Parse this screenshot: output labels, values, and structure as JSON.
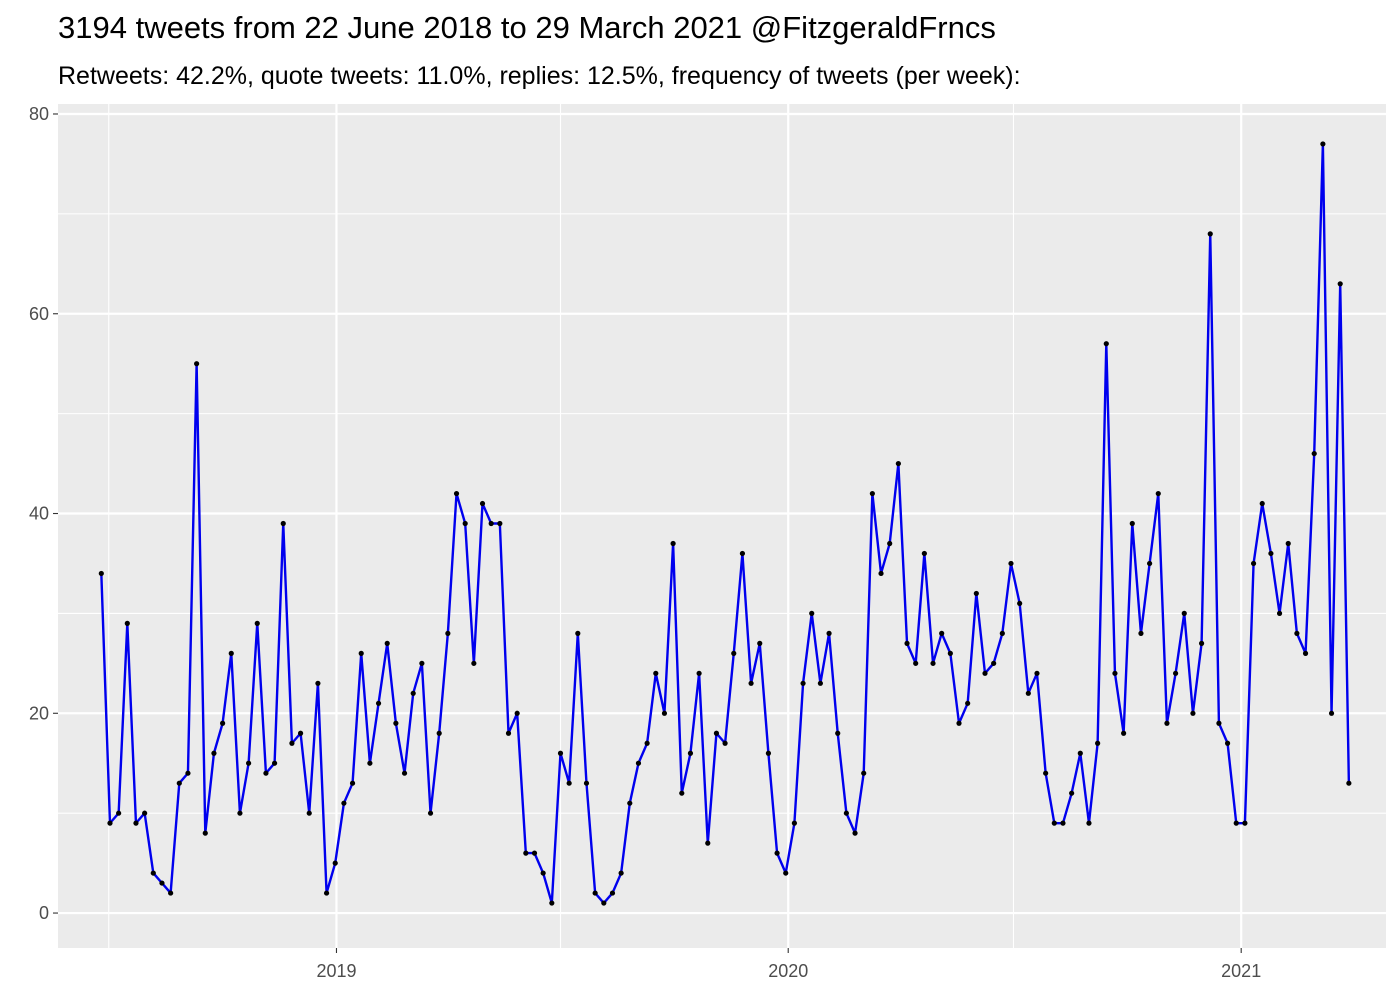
{
  "chart_data": {
    "type": "line",
    "title": "3194 tweets from 22 June 2018 to 29 March 2021 @FitzgeraldFrncs",
    "subtitle": "Retweets: 42.2%, quote tweets: 11.0%, replies: 12.5%, frequency of tweets (per week):",
    "xlabel": "",
    "ylabel": "",
    "ylim": [
      -3.5,
      81
    ],
    "xlim": [
      "2018-05-21",
      "2021-04-28"
    ],
    "y_ticks": [
      0,
      20,
      40,
      60,
      80
    ],
    "x_ticks": [
      {
        "date": "2019-01-01",
        "label": "2019"
      },
      {
        "date": "2020-01-01",
        "label": "2020"
      },
      {
        "date": "2021-01-01",
        "label": "2021"
      }
    ],
    "x_minor_ticks": [
      "2018-07-01",
      "2019-07-01",
      "2020-07-01"
    ],
    "grid": true,
    "line_color": "#0000ee",
    "point_color": "#000000",
    "panel_color": "#ebebeb",
    "grid_color": "#ffffff",
    "series": [
      {
        "x": [
          "2018-06-25",
          "2018-07-02",
          "2018-07-09",
          "2018-07-16",
          "2018-07-23",
          "2018-07-30",
          "2018-08-06",
          "2018-08-13",
          "2018-08-20",
          "2018-08-27",
          "2018-09-03",
          "2018-09-10",
          "2018-09-17",
          "2018-09-24",
          "2018-10-01",
          "2018-10-08",
          "2018-10-15",
          "2018-10-22",
          "2018-10-29",
          "2018-11-05",
          "2018-11-12",
          "2018-11-19",
          "2018-11-26",
          "2018-12-03",
          "2018-12-10",
          "2018-12-17",
          "2018-12-24",
          "2018-12-31",
          "2019-01-07",
          "2019-01-14",
          "2019-01-21",
          "2019-01-28",
          "2019-02-04",
          "2019-02-11",
          "2019-02-18",
          "2019-02-25",
          "2019-03-04",
          "2019-03-11",
          "2019-03-18",
          "2019-03-25",
          "2019-04-01",
          "2019-04-08",
          "2019-04-15",
          "2019-04-22",
          "2019-04-29",
          "2019-05-06",
          "2019-05-13",
          "2019-05-20",
          "2019-05-27",
          "2019-06-03",
          "2019-06-10",
          "2019-06-17",
          "2019-06-24",
          "2019-07-01",
          "2019-07-08",
          "2019-07-15",
          "2019-07-22",
          "2019-07-29",
          "2019-08-05",
          "2019-08-12",
          "2019-08-19",
          "2019-08-26",
          "2019-09-02",
          "2019-09-09",
          "2019-09-16",
          "2019-09-23",
          "2019-09-30",
          "2019-10-07",
          "2019-10-14",
          "2019-10-21",
          "2019-10-28",
          "2019-11-04",
          "2019-11-11",
          "2019-11-18",
          "2019-11-25",
          "2019-12-02",
          "2019-12-09",
          "2019-12-16",
          "2019-12-23",
          "2019-12-30",
          "2020-01-06",
          "2020-01-13",
          "2020-01-20",
          "2020-01-27",
          "2020-02-03",
          "2020-02-10",
          "2020-02-17",
          "2020-02-24",
          "2020-03-02",
          "2020-03-09",
          "2020-03-16",
          "2020-03-23",
          "2020-03-30",
          "2020-04-06",
          "2020-04-13",
          "2020-04-20",
          "2020-04-27",
          "2020-05-04",
          "2020-05-11",
          "2020-05-18",
          "2020-05-25",
          "2020-06-01",
          "2020-06-08",
          "2020-06-15",
          "2020-06-22",
          "2020-06-29",
          "2020-07-06",
          "2020-07-13",
          "2020-07-20",
          "2020-07-27",
          "2020-08-03",
          "2020-08-10",
          "2020-08-17",
          "2020-08-24",
          "2020-08-31",
          "2020-09-07",
          "2020-09-14",
          "2020-09-21",
          "2020-09-28",
          "2020-10-05",
          "2020-10-12",
          "2020-10-19",
          "2020-10-26",
          "2020-11-02",
          "2020-11-09",
          "2020-11-16",
          "2020-11-23",
          "2020-11-30",
          "2020-12-07",
          "2020-12-14",
          "2020-12-21",
          "2020-12-28",
          "2021-01-04",
          "2021-01-11",
          "2021-01-18",
          "2021-01-25",
          "2021-02-01",
          "2021-02-08",
          "2021-02-15",
          "2021-02-22",
          "2021-03-01",
          "2021-03-08",
          "2021-03-15",
          "2021-03-22",
          "2021-03-29"
        ],
        "y": [
          34,
          9,
          10,
          29,
          9,
          10,
          4,
          3,
          2,
          13,
          14,
          55,
          8,
          16,
          19,
          26,
          10,
          15,
          29,
          14,
          15,
          39,
          17,
          18,
          10,
          23,
          2,
          5,
          11,
          13,
          26,
          15,
          21,
          27,
          19,
          14,
          22,
          25,
          10,
          18,
          28,
          42,
          39,
          25,
          41,
          39,
          39,
          18,
          20,
          6,
          6,
          4,
          1,
          16,
          13,
          28,
          13,
          2,
          1,
          2,
          4,
          11,
          15,
          17,
          24,
          20,
          37,
          12,
          16,
          24,
          7,
          18,
          17,
          26,
          36,
          23,
          27,
          16,
          6,
          4,
          9,
          23,
          30,
          23,
          28,
          18,
          10,
          8,
          14,
          42,
          34,
          37,
          45,
          27,
          25,
          36,
          25,
          28,
          26,
          19,
          21,
          32,
          24,
          25,
          28,
          35,
          31,
          22,
          24,
          14,
          9,
          9,
          12,
          16,
          9,
          17,
          57,
          24,
          18,
          39,
          28,
          35,
          42,
          19,
          24,
          30,
          20,
          27,
          68,
          19,
          17,
          9,
          9,
          35,
          41,
          36,
          30,
          37,
          28,
          26,
          46,
          77,
          20,
          63,
          13
        ]
      }
    ]
  }
}
